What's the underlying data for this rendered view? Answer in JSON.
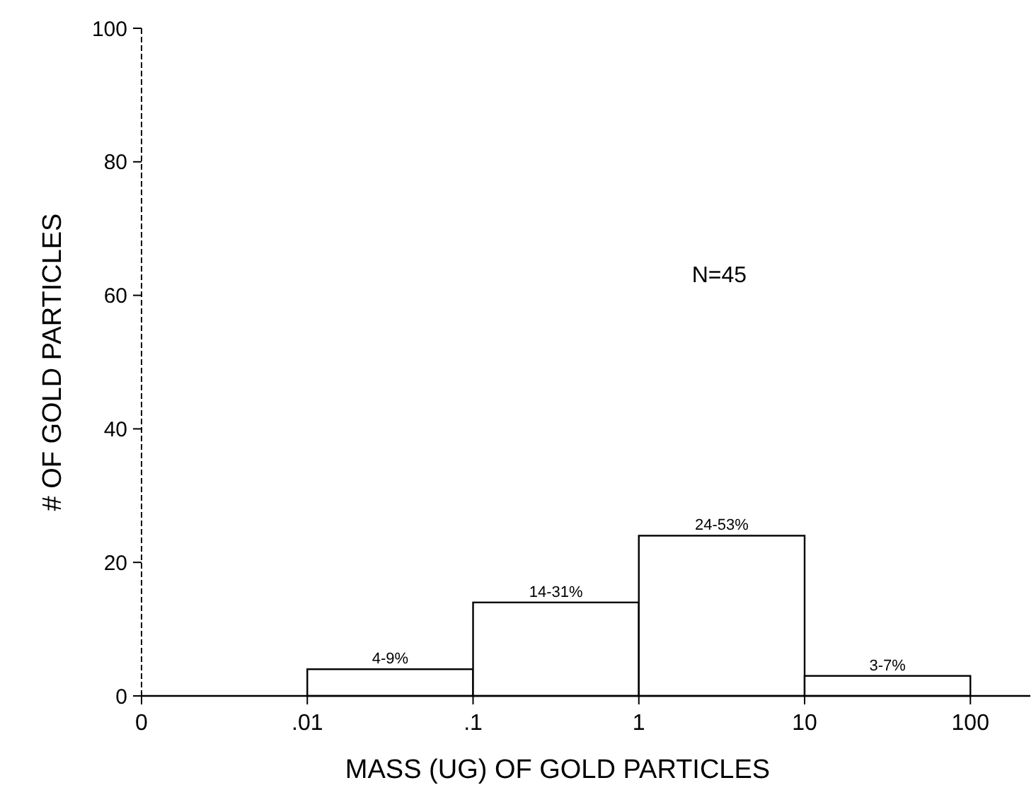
{
  "chart_data": {
    "type": "histogram",
    "xlabel": "MASS (UG) OF GOLD PARTICLES",
    "ylabel": "# OF GOLD PARTICLES",
    "log": "x",
    "bins": [
      0.001,
      0.01,
      0.1,
      1,
      10,
      100
    ],
    "values": [
      0,
      4,
      14,
      24,
      3
    ],
    "value_labels": [
      null,
      "4-9%",
      "14-31%",
      "24-53%",
      "3-7%"
    ],
    "xlim": [
      0.001,
      230
    ],
    "xticks": [
      {
        "value": 0.001,
        "label": "0"
      },
      {
        "value": 0.01,
        "label": ".01"
      },
      {
        "value": 0.1,
        "label": ".1"
      },
      {
        "value": 1,
        "label": "1"
      },
      {
        "value": 10,
        "label": "10"
      },
      {
        "value": 100,
        "label": "100"
      }
    ],
    "ylim": [
      0,
      100
    ],
    "yticks": [
      0,
      20,
      40,
      60,
      80,
      100
    ],
    "color": "#ffffff",
    "grid": false,
    "annotations": [
      "N=45"
    ]
  }
}
